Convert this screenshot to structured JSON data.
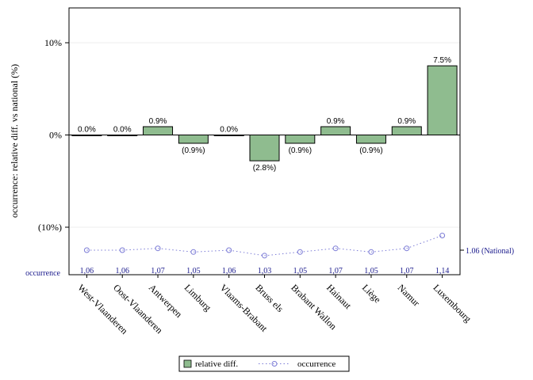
{
  "chart_data": {
    "type": "bar",
    "ylabel": "occurrence: relative diff. vs national (%)",
    "ylim": [
      -15,
      14
    ],
    "ytick_values": [
      10,
      0,
      -10
    ],
    "ytick_labels": [
      "10%",
      "0%",
      "(10%)"
    ],
    "categories": [
      "West-Vlaanderen",
      "Oost-Vlaanderen",
      "Antwerpen",
      "Limburg",
      "Vlaams-Brabant",
      "Bruss els",
      "Brabant Wallon",
      "Hainaut",
      "Liège",
      "Namur",
      "Luxembourg"
    ],
    "series": [
      {
        "name": "relative diff.",
        "values": [
          0.0,
          0.0,
          0.9,
          -0.9,
          0.0,
          -2.8,
          -0.9,
          0.9,
          -0.9,
          0.9,
          7.5
        ],
        "labels": [
          "0.0%",
          "0.0%",
          "0.9%",
          "(0.9%)",
          "0.0%",
          "(2.8%)",
          "(0.9%)",
          "0.9%",
          "(0.9%)",
          "0.9%",
          "7.5%"
        ],
        "color": "#8fbc8f"
      },
      {
        "name": "occurrence",
        "values": [
          1.06,
          1.06,
          1.07,
          1.05,
          1.06,
          1.03,
          1.05,
          1.07,
          1.05,
          1.07,
          1.14
        ],
        "labels": [
          "1,06",
          "1,06",
          "1,07",
          "1,05",
          "1,06",
          "1,03",
          "1,05",
          "1,07",
          "1,05",
          "1,07",
          "1,14"
        ],
        "color": "#7b7bd6"
      }
    ],
    "occurrence_row_label": "occurrence",
    "national_label": "1.06 (National)",
    "national_value": 1.06,
    "legend": [
      "relative diff.",
      "occurrence"
    ],
    "legend_position": "bottom"
  }
}
